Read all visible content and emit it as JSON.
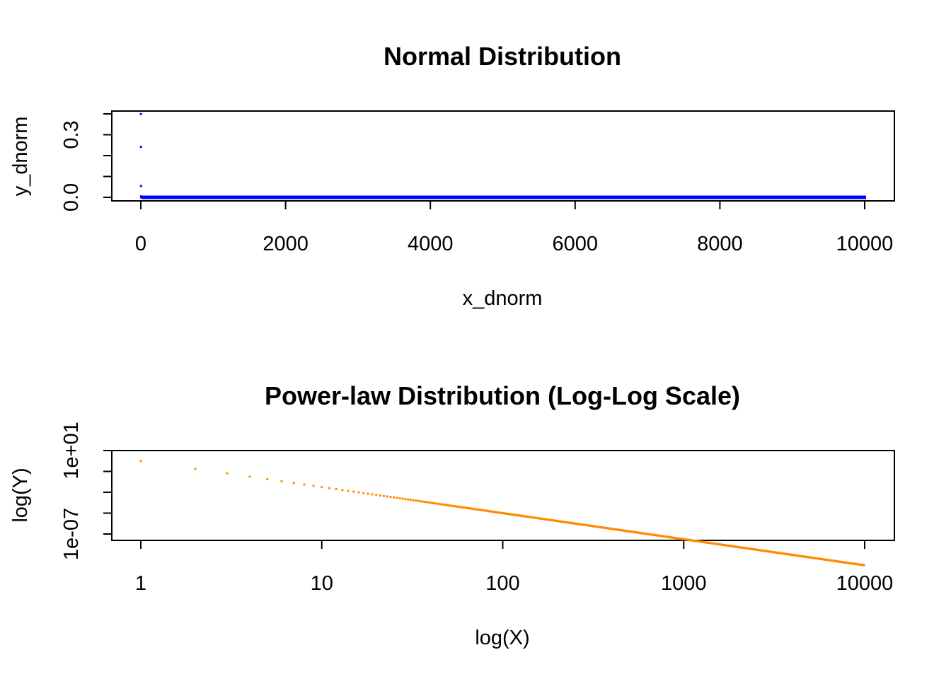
{
  "chart_data": [
    {
      "type": "scatter",
      "title": "Normal Distribution",
      "xlabel": "x_dnorm",
      "ylabel": "y_dnorm",
      "xlim": [
        0,
        10000
      ],
      "ylim": [
        0,
        0.4
      ],
      "x_ticks": [
        0,
        2000,
        4000,
        6000,
        8000,
        10000
      ],
      "x_tick_labels": [
        "0",
        "2000",
        "4000",
        "6000",
        "8000",
        "10000"
      ],
      "y_ticks": [
        0,
        0.1,
        0.2,
        0.3,
        0.4
      ],
      "y_tick_labels": [
        "0.0",
        "0.3"
      ],
      "y_tick_label_values": [
        0,
        0.3
      ],
      "color": "#0000ff",
      "series": [
        {
          "x": [
            1,
            2,
            3,
            4,
            5,
            6,
            7,
            8,
            9,
            10
          ],
          "y": [
            0.399,
            0.242,
            0.054,
            0.0044,
            0.0001,
            0,
            0,
            0,
            0,
            0
          ],
          "note_pattern": "normal density values of x = 1..10000"
        }
      ],
      "grid": false,
      "legend": "none"
    },
    {
      "type": "scatter",
      "title": "Power-law Distribution (Log-Log Scale)",
      "xlabel": "log(X)",
      "ylabel": "log(Y)",
      "log_x": true,
      "log_y": true,
      "xlim": [
        1,
        10000
      ],
      "x_ticks": [
        1,
        10,
        100,
        1000,
        10000
      ],
      "x_tick_labels": [
        "1",
        "10",
        "100",
        "1000",
        "10000"
      ],
      "y_tick_labels": [
        "1e-07",
        "1e+01"
      ],
      "y_tick_label_values": [
        1e-07,
        10
      ],
      "y_ticks": [
        1e-07,
        0.001,
        10
      ],
      "color": "#ff8c00",
      "power_law": {
        "y_at_x1": 1,
        "exponent": -2.5,
        "x_min": 1,
        "x_max": 10000
      },
      "grid": false,
      "legend": "none"
    }
  ]
}
